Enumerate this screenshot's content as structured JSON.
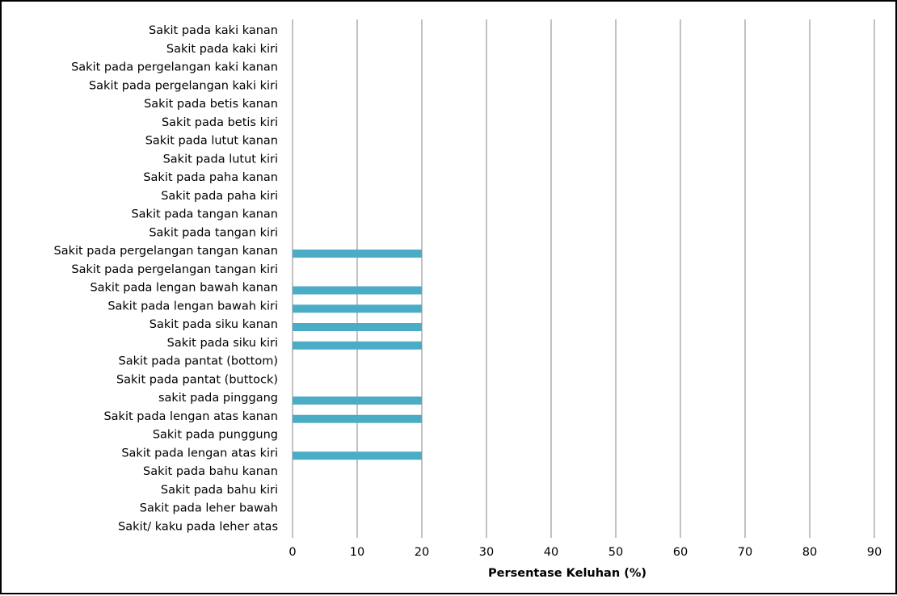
{
  "chart_data": {
    "type": "bar",
    "orientation": "horizontal",
    "categories": [
      "Sakit pada kaki kanan",
      "Sakit pada kaki kiri",
      "Sakit pada pergelangan kaki kanan",
      "Sakit pada pergelangan kaki kiri",
      "Sakit pada betis kanan",
      "Sakit pada betis kiri",
      "Sakit pada lutut kanan",
      "Sakit pada lutut kiri",
      "Sakit pada paha kanan",
      "Sakit pada paha kiri",
      "Sakit pada tangan kanan",
      "Sakit pada tangan kiri",
      "Sakit pada pergelangan tangan kanan",
      "Sakit pada pergelangan tangan kiri",
      "Sakit pada lengan bawah kanan",
      "Sakit pada lengan bawah kiri",
      "Sakit pada siku kanan",
      "Sakit pada siku kiri",
      "Sakit pada pantat (bottom)",
      "Sakit pada pantat (buttock)",
      "sakit pada pinggang",
      "Sakit pada lengan atas kanan",
      "Sakit pada punggung",
      "Sakit pada lengan atas kiri",
      "Sakit pada bahu kanan",
      "Sakit pada bahu kiri",
      "Sakit pada leher bawah",
      "Sakit/ kaku pada leher atas"
    ],
    "values": [
      0,
      0,
      0,
      0,
      0,
      0,
      0,
      0,
      0,
      0,
      0,
      0,
      20,
      0,
      20,
      20,
      20,
      20,
      0,
      0,
      20,
      20,
      0,
      20,
      0,
      0,
      0,
      0
    ],
    "xlabel": "Persentase Keluhan (%)",
    "ylabel": "",
    "title": "",
    "xlim": [
      0,
      90
    ],
    "xticks": [
      "0",
      "10",
      "20",
      "30",
      "40",
      "50",
      "60",
      "70",
      "80",
      "90"
    ],
    "grid": "vertical",
    "legend": "none",
    "colors": {
      "bar": "#4BACC6",
      "grid": "#868686",
      "text": "#000000",
      "frame": "#000000"
    }
  }
}
